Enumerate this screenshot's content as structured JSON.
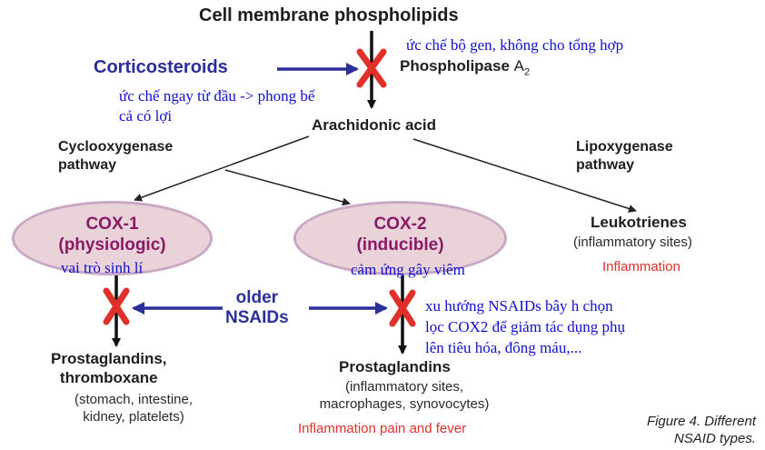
{
  "diagram": {
    "cell_membrane": "Cell membrane phospholipids",
    "corticosteroids": "Corticosteroids",
    "phospholipase": "Phospholipase",
    "phospholipase_sub": "A",
    "phospholipase_sub2": "2",
    "note_gene": "ức chế bộ gen, không cho tổng hợp",
    "note_early_1": "ức chế ngay từ đầu -> phong bế",
    "note_early_2": "cả có lợi",
    "arachidonic": "Arachidonic acid",
    "cox_pathway_1": "Cyclooxygenase",
    "cox_pathway_2": "pathway",
    "lipox_pathway_1": "Lipoxygenase",
    "lipox_pathway_2": "pathway",
    "cox1_title": "COX-1",
    "cox1_sub": "(physiologic)",
    "cox1_note": "vai trò sinh lí",
    "cox2_title": "COX-2",
    "cox2_sub": "(inducible)",
    "cox2_note": "cảm ứng gây viêm",
    "leukotrienes": "Leukotrienes",
    "leuko_sites": "(inflammatory sites)",
    "leuko_effect": "Inflammation",
    "older_1": "older",
    "older_2": "NSAIDs",
    "nsaid_note_1": "xu hướng NSAIDs bây h chọn",
    "nsaid_note_2": "lọc COX2 để giảm tác dụng phụ",
    "nsaid_note_3": "lên tiêu hóa, đông máu,...",
    "pg1_title_1": "Prostaglandins,",
    "pg1_title_2": "thromboxane",
    "pg1_sites_1": "(stomach, intestine,",
    "pg1_sites_2": "kidney, platelets)",
    "pg2_title": "Prostaglandins",
    "pg2_sites_1": "(inflammatory sites,",
    "pg2_sites_2": "macrophages, synovocytes)",
    "pg2_effect": "Inflammation pain and fever",
    "caption_1": "Figure 4. Different",
    "caption_2": "NSAID types."
  },
  "colors": {
    "arrow_blue": "#2c2f9a",
    "cross_red": "#e0302a",
    "note_blue": "#1010d0",
    "oval_fill": "#e9d3d8",
    "oval_text": "#8a1a66"
  }
}
